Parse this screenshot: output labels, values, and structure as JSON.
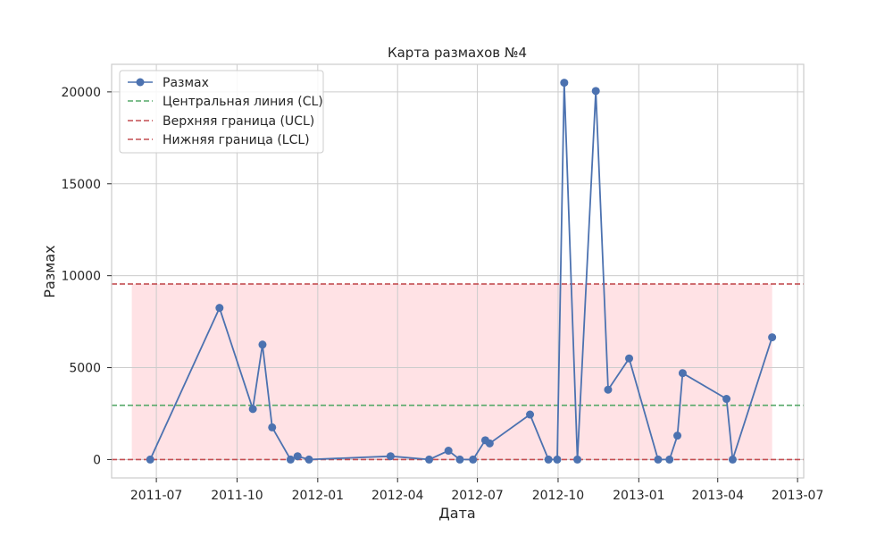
{
  "chart_data": {
    "type": "line",
    "title": "Карта размахов №4",
    "xlabel": "Дата",
    "ylabel": "Размах",
    "xlim": [
      "2011-05-11",
      "2013-07-08"
    ],
    "ylim": [
      -1000,
      21500
    ],
    "x_ticks": [
      "2011-07-01",
      "2011-10-01",
      "2012-01-01",
      "2012-04-01",
      "2012-07-01",
      "2012-10-01",
      "2013-01-01",
      "2013-04-01",
      "2013-07-01"
    ],
    "x_tick_labels": [
      "2011-07",
      "2011-10",
      "2012-01",
      "2012-04",
      "2012-07",
      "2012-10",
      "2013-01",
      "2013-04",
      "2013-07"
    ],
    "y_ticks": [
      0,
      5000,
      10000,
      15000,
      20000
    ],
    "y_tick_labels": [
      "0",
      "5000",
      "10000",
      "15000",
      "20000"
    ],
    "grid": true,
    "legend_position": "top-left",
    "series": [
      {
        "name": "Размах",
        "color": "#4c72b0",
        "marker": "circle",
        "x": [
          "2011-06-24",
          "2011-09-11",
          "2011-10-19",
          "2011-10-30",
          "2011-11-10",
          "2011-12-01",
          "2011-12-09",
          "2011-12-22",
          "2012-03-24",
          "2012-05-07",
          "2012-05-29",
          "2012-06-11",
          "2012-06-26",
          "2012-07-10",
          "2012-07-15",
          "2012-08-30",
          "2012-09-20",
          "2012-09-30",
          "2012-10-08",
          "2012-10-23",
          "2012-11-13",
          "2012-11-27",
          "2012-12-21",
          "2013-01-23",
          "2013-02-05",
          "2013-02-14",
          "2013-02-20",
          "2013-04-11",
          "2013-04-18",
          "2013-06-02"
        ],
        "y": [
          0,
          8250,
          2750,
          6250,
          1750,
          0,
          180,
          0,
          180,
          0,
          480,
          0,
          0,
          1050,
          880,
          2450,
          0,
          0,
          20500,
          0,
          20050,
          3800,
          5500,
          0,
          0,
          1300,
          4700,
          3300,
          0,
          6650
        ]
      }
    ],
    "reference_lines": [
      {
        "name": "Центральная линия (CL)",
        "value": 2950,
        "color": "#55a868",
        "style": "dashed"
      },
      {
        "name": "Верхняя граница (UCL)",
        "value": 9550,
        "color": "#c44e52",
        "style": "dashed"
      },
      {
        "name": "Нижняя граница (LCL)",
        "value": 0,
        "color": "#c44e52",
        "style": "dashed"
      }
    ],
    "shaded_band": {
      "from": 0,
      "to": 9550,
      "x_start": "2011-06-03",
      "x_end": "2013-06-02",
      "color": "#ffdfe2"
    }
  }
}
